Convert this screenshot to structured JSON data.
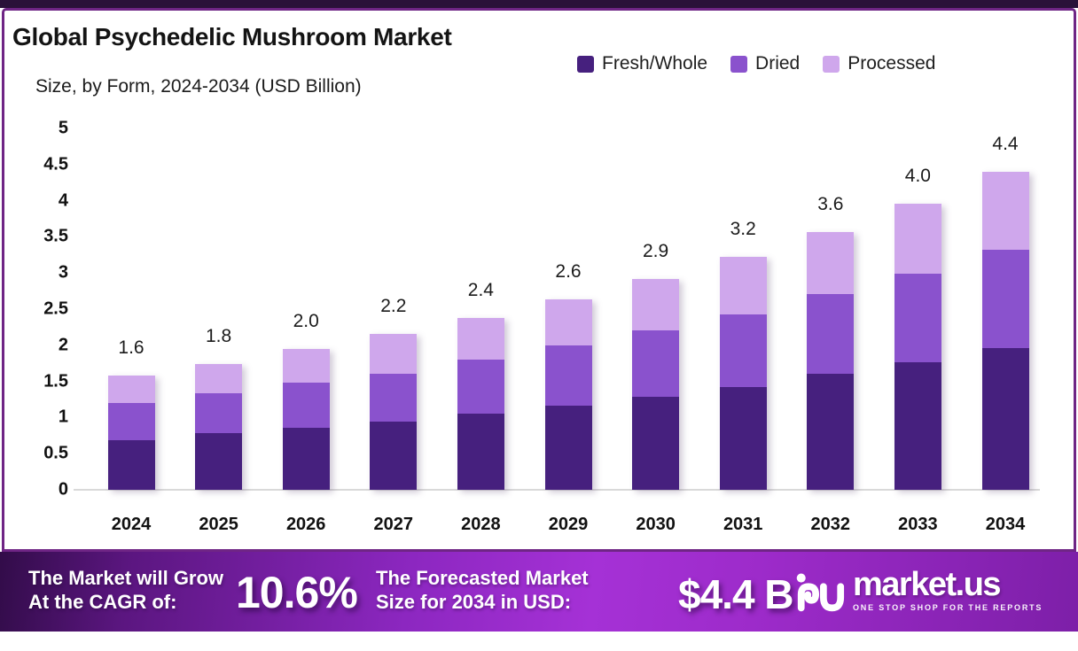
{
  "header": {
    "title": "Global Psychedelic Mushroom Market",
    "subtitle": "Size, by Form, 2024-2034 (USD Billion)"
  },
  "legend": [
    {
      "label": "Fresh/Whole",
      "color": "#46207e"
    },
    {
      "label": "Dried",
      "color": "#8a52cd"
    },
    {
      "label": "Processed",
      "color": "#cfa7ec"
    }
  ],
  "chart_data": {
    "type": "bar",
    "stacked": true,
    "title": "Global Psychedelic Mushroom Market Size, by Form, 2024-2034 (USD Billion)",
    "categories": [
      "2024",
      "2025",
      "2026",
      "2027",
      "2028",
      "2029",
      "2030",
      "2031",
      "2032",
      "2033",
      "2034"
    ],
    "series": [
      {
        "name": "Fresh/Whole",
        "color": "#46207e",
        "values": [
          0.69,
          0.78,
          0.86,
          0.94,
          1.05,
          1.17,
          1.29,
          1.42,
          1.6,
          1.76,
          1.96
        ]
      },
      {
        "name": "Dried",
        "color": "#8a52cd",
        "values": [
          0.51,
          0.55,
          0.62,
          0.67,
          0.75,
          0.83,
          0.91,
          1.01,
          1.11,
          1.23,
          1.36
        ]
      },
      {
        "name": "Processed",
        "color": "#cfa7ec",
        "values": [
          0.38,
          0.41,
          0.47,
          0.55,
          0.58,
          0.64,
          0.72,
          0.79,
          0.86,
          0.97,
          1.08
        ]
      }
    ],
    "total_labels": [
      "1.6",
      "1.8",
      "2.0",
      "2.2",
      "2.4",
      "2.6",
      "2.9",
      "3.2",
      "3.6",
      "4.0",
      "4.4"
    ],
    "ylim": [
      0,
      5
    ],
    "yticks": [
      "0",
      "0.5",
      "1",
      "1.5",
      "2",
      "2.5",
      "3",
      "3.5",
      "4",
      "4.5",
      "5"
    ],
    "grid": false,
    "legend_position": "top-right",
    "ylabel": "",
    "xlabel": ""
  },
  "banner": {
    "cagr_label_line1": "The Market will Grow",
    "cagr_label_line2": "At the CAGR of:",
    "cagr_value": "10.6%",
    "forecast_label_line1": "The Forecasted Market",
    "forecast_label_line2": "Size for 2034 in USD:",
    "forecast_value": "$4.4 B",
    "brand": "market.us",
    "brand_tagline": "ONE STOP SHOP FOR THE REPORTS"
  },
  "colors": {
    "top_strip": "#2a1139",
    "card_border": "#6f2585",
    "axis_line": "#d9d9d9",
    "banner_gradient": [
      "#320c49",
      "#8c27c0",
      "#a531d6",
      "#7d1fa8"
    ]
  }
}
